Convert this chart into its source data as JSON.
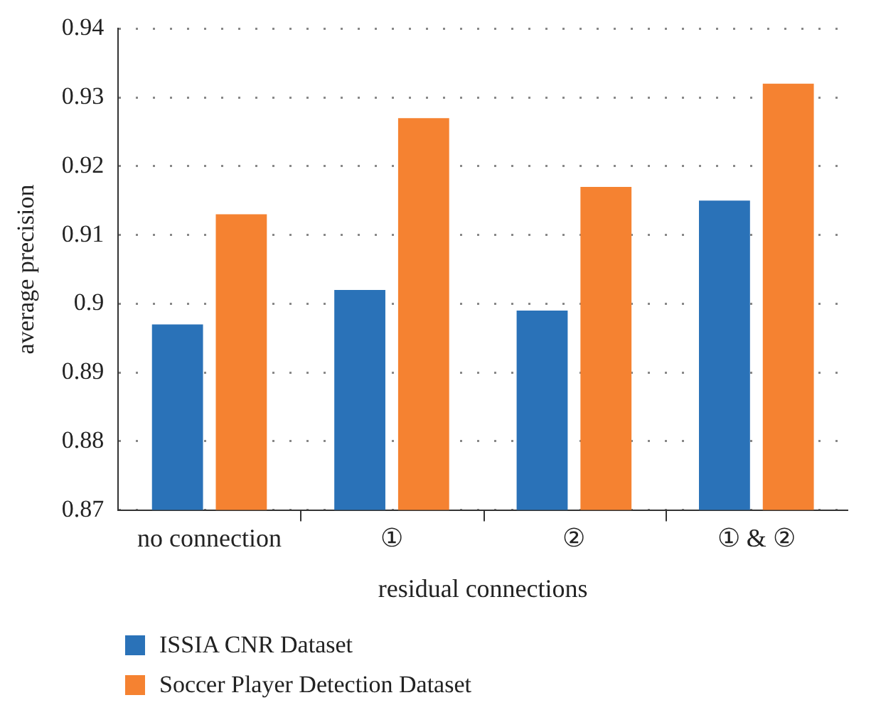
{
  "chart_data": {
    "type": "bar",
    "xlabel": "residual connections",
    "ylabel": "average precision",
    "categories": [
      "no connection",
      "①",
      "②",
      "① & ②"
    ],
    "series": [
      {
        "name": "ISSIA CNR Dataset",
        "color": "#2a72b8",
        "values": [
          0.897,
          0.902,
          0.899,
          0.915
        ]
      },
      {
        "name": "Soccer Player Detection Dataset",
        "color": "#f58231",
        "values": [
          0.913,
          0.927,
          0.917,
          0.932
        ]
      }
    ],
    "ylim": [
      0.87,
      0.94
    ],
    "yticks": [
      0.87,
      0.88,
      0.89,
      0.9,
      0.91,
      0.92,
      0.93,
      0.94
    ],
    "grid": "y",
    "legend": "bottom"
  }
}
